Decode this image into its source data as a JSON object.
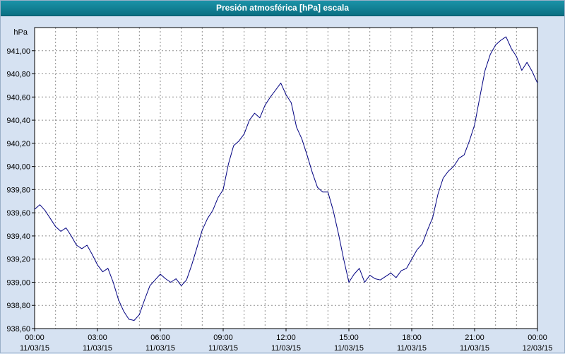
{
  "window": {
    "title": "Presión atmosférica [hPa] escala"
  },
  "chart_data": {
    "type": "line",
    "title": "Presión atmosférica [hPa] escala",
    "ylabel": "hPa",
    "xlabel": "",
    "xlim": [
      0,
      24
    ],
    "ylim": [
      938.6,
      941.2
    ],
    "grid": true,
    "grid_color": "#8f8f8f",
    "line_color": "#000080",
    "plot_bg": "#ffffff",
    "axis_color": "#000000",
    "y_ticks": [
      {
        "v": 938.6,
        "label": "938,60"
      },
      {
        "v": 938.8,
        "label": "938,80"
      },
      {
        "v": 939.0,
        "label": "939,00"
      },
      {
        "v": 939.2,
        "label": "939,20"
      },
      {
        "v": 939.4,
        "label": "939,40"
      },
      {
        "v": 939.6,
        "label": "939,60"
      },
      {
        "v": 939.8,
        "label": "939,80"
      },
      {
        "v": 940.0,
        "label": "940,00"
      },
      {
        "v": 940.2,
        "label": "940,20"
      },
      {
        "v": 940.4,
        "label": "940,40"
      },
      {
        "v": 940.6,
        "label": "940,60"
      },
      {
        "v": 940.8,
        "label": "940,80"
      },
      {
        "v": 941.0,
        "label": "941,00"
      }
    ],
    "x_ticks": [
      {
        "h": 0,
        "label": "00:00",
        "date": "11/03/15"
      },
      {
        "h": 3,
        "label": "03:00",
        "date": "11/03/15"
      },
      {
        "h": 6,
        "label": "06:00",
        "date": "11/03/15"
      },
      {
        "h": 9,
        "label": "09:00",
        "date": "11/03/15"
      },
      {
        "h": 12,
        "label": "12:00",
        "date": "11/03/15"
      },
      {
        "h": 15,
        "label": "15:00",
        "date": "11/03/15"
      },
      {
        "h": 18,
        "label": "18:00",
        "date": "11/03/15"
      },
      {
        "h": 21,
        "label": "21:00",
        "date": "11/03/15"
      },
      {
        "h": 24,
        "label": "00:00",
        "date": "12/03/15"
      }
    ],
    "minor_x_step_hours": 1,
    "series": [
      {
        "name": "Presión atmosférica",
        "points": [
          [
            0.0,
            939.63
          ],
          [
            0.25,
            939.67
          ],
          [
            0.5,
            939.62
          ],
          [
            0.75,
            939.55
          ],
          [
            1.0,
            939.48
          ],
          [
            1.25,
            939.44
          ],
          [
            1.5,
            939.47
          ],
          [
            1.75,
            939.4
          ],
          [
            2.0,
            939.32
          ],
          [
            2.25,
            939.29
          ],
          [
            2.5,
            939.32
          ],
          [
            2.75,
            939.24
          ],
          [
            3.0,
            939.15
          ],
          [
            3.25,
            939.09
          ],
          [
            3.5,
            939.12
          ],
          [
            3.75,
            939.0
          ],
          [
            4.0,
            938.85
          ],
          [
            4.25,
            938.75
          ],
          [
            4.5,
            938.68
          ],
          [
            4.75,
            938.67
          ],
          [
            5.0,
            938.72
          ],
          [
            5.25,
            938.85
          ],
          [
            5.5,
            938.97
          ],
          [
            5.75,
            939.02
          ],
          [
            6.0,
            939.07
          ],
          [
            6.25,
            939.03
          ],
          [
            6.5,
            939.0
          ],
          [
            6.75,
            939.03
          ],
          [
            7.0,
            938.97
          ],
          [
            7.25,
            939.02
          ],
          [
            7.5,
            939.15
          ],
          [
            7.75,
            939.3
          ],
          [
            8.0,
            939.45
          ],
          [
            8.25,
            939.55
          ],
          [
            8.5,
            939.62
          ],
          [
            8.75,
            939.73
          ],
          [
            9.0,
            939.8
          ],
          [
            9.25,
            940.02
          ],
          [
            9.5,
            940.18
          ],
          [
            9.75,
            940.22
          ],
          [
            10.0,
            940.28
          ],
          [
            10.25,
            940.4
          ],
          [
            10.5,
            940.46
          ],
          [
            10.75,
            940.42
          ],
          [
            11.0,
            940.53
          ],
          [
            11.25,
            940.6
          ],
          [
            11.5,
            940.66
          ],
          [
            11.75,
            940.72
          ],
          [
            12.0,
            940.62
          ],
          [
            12.25,
            940.55
          ],
          [
            12.5,
            940.34
          ],
          [
            12.75,
            940.24
          ],
          [
            13.0,
            940.1
          ],
          [
            13.25,
            939.95
          ],
          [
            13.5,
            939.82
          ],
          [
            13.75,
            939.78
          ],
          [
            14.0,
            939.78
          ],
          [
            14.25,
            939.62
          ],
          [
            14.5,
            939.42
          ],
          [
            14.75,
            939.2
          ],
          [
            15.0,
            939.0
          ],
          [
            15.25,
            939.07
          ],
          [
            15.5,
            939.12
          ],
          [
            15.75,
            939.0
          ],
          [
            16.0,
            939.06
          ],
          [
            16.25,
            939.03
          ],
          [
            16.5,
            939.02
          ],
          [
            16.75,
            939.05
          ],
          [
            17.0,
            939.08
          ],
          [
            17.25,
            939.04
          ],
          [
            17.5,
            939.1
          ],
          [
            17.75,
            939.12
          ],
          [
            18.0,
            939.2
          ],
          [
            18.25,
            939.28
          ],
          [
            18.5,
            939.33
          ],
          [
            18.75,
            939.45
          ],
          [
            19.0,
            939.56
          ],
          [
            19.25,
            939.76
          ],
          [
            19.5,
            939.9
          ],
          [
            19.75,
            939.96
          ],
          [
            20.0,
            940.0
          ],
          [
            20.25,
            940.07
          ],
          [
            20.5,
            940.1
          ],
          [
            20.75,
            940.22
          ],
          [
            21.0,
            940.36
          ],
          [
            21.25,
            940.6
          ],
          [
            21.5,
            940.83
          ],
          [
            21.75,
            940.97
          ],
          [
            22.0,
            941.05
          ],
          [
            22.25,
            941.09
          ],
          [
            22.5,
            941.12
          ],
          [
            22.75,
            941.02
          ],
          [
            23.0,
            940.95
          ],
          [
            23.25,
            940.83
          ],
          [
            23.5,
            940.9
          ],
          [
            23.75,
            940.82
          ],
          [
            24.0,
            940.72
          ]
        ]
      }
    ]
  }
}
